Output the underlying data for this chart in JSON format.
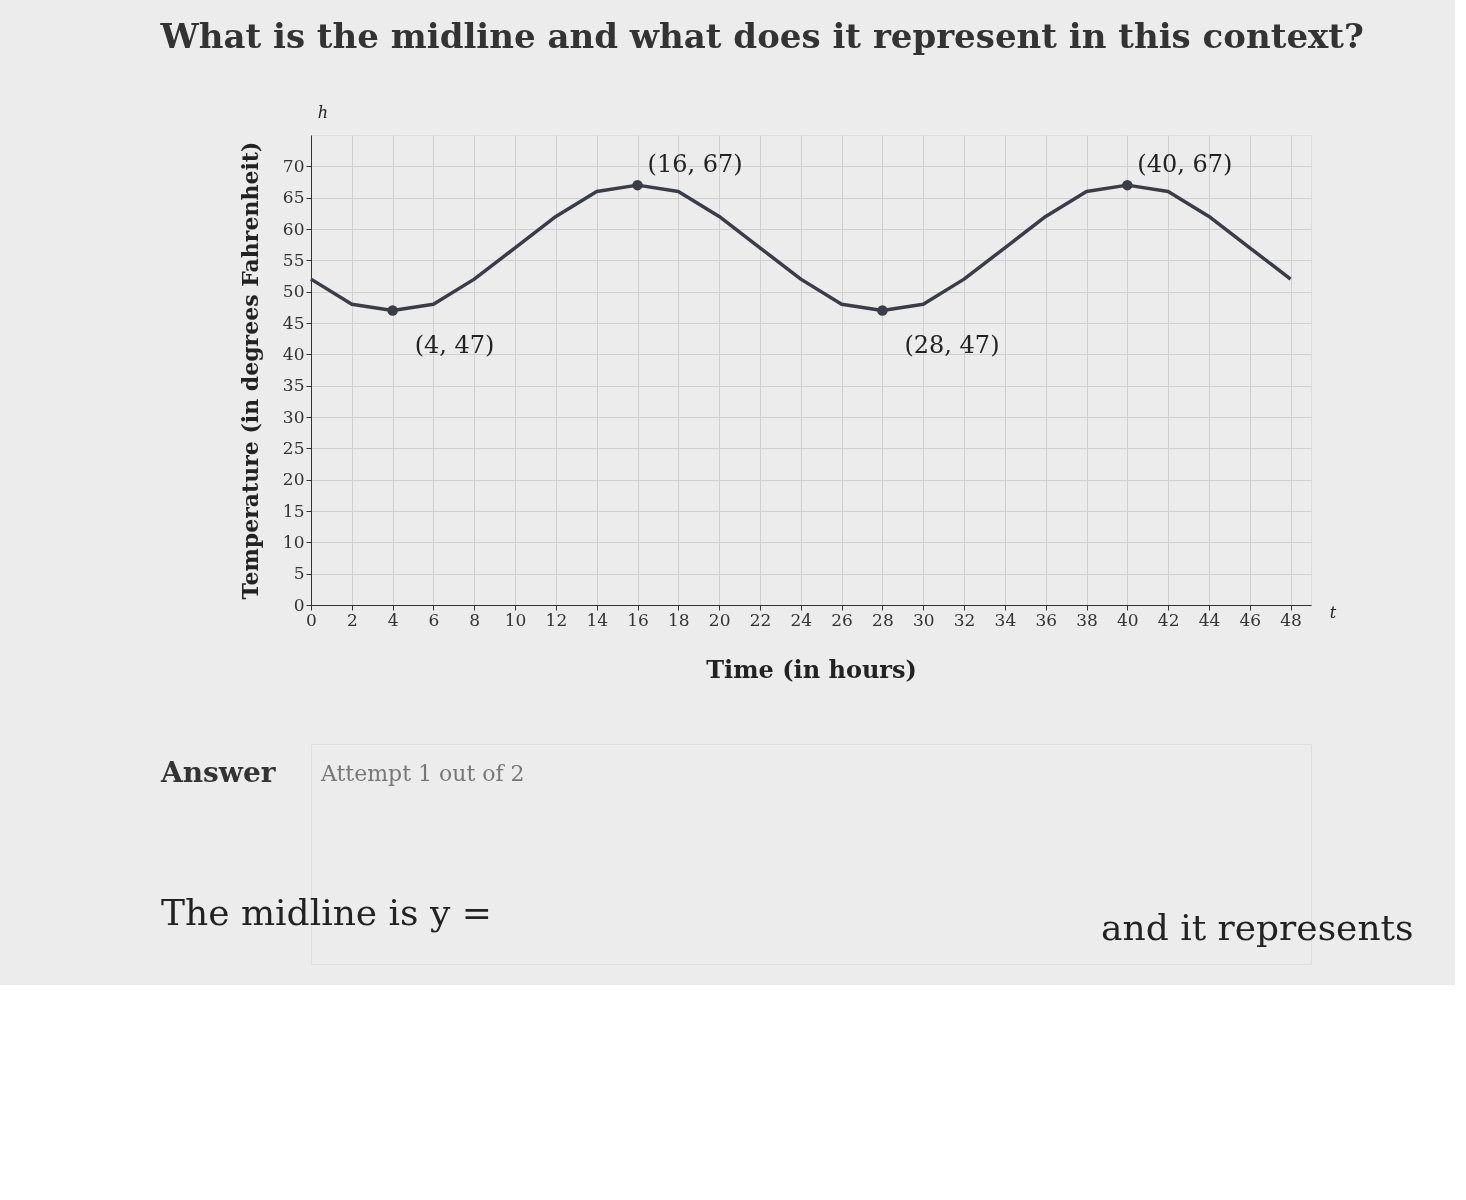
{
  "chart_data": {
    "type": "line",
    "title": "What is the midline and what does it represent in this context?",
    "xlabel": "Time (in hours)",
    "ylabel": "Temperature (in degrees Fahrenheit)",
    "series": [
      {
        "color": "#3a3d47",
        "marker": "none",
        "x": [
          0,
          2,
          4,
          6,
          8,
          10,
          12,
          14,
          16,
          18,
          20,
          22,
          24,
          26,
          28,
          30,
          32,
          34,
          36,
          38,
          40,
          42,
          44,
          46,
          48
        ],
        "values": [
          52,
          48,
          47,
          48,
          52,
          57,
          62,
          66,
          67,
          66,
          62,
          57,
          52,
          48,
          47,
          48,
          52,
          57,
          62,
          66,
          67,
          66,
          62,
          57,
          52
        ]
      },
      {
        "type": "scatter",
        "color": "#3a3d47",
        "marker": "circle",
        "x": [
          4,
          16,
          28,
          40
        ],
        "values": [
          47,
          67,
          47,
          67
        ]
      }
    ],
    "xlim": [
      0,
      49
    ],
    "xticks": [
      0,
      2,
      4,
      6,
      8,
      10,
      12,
      14,
      16,
      18,
      20,
      22,
      24,
      26,
      28,
      30,
      32,
      34,
      36,
      38,
      40,
      42,
      44,
      46,
      48
    ],
    "ylim": [
      0,
      75
    ],
    "yticks": [
      0,
      5,
      10,
      15,
      20,
      25,
      30,
      35,
      40,
      45,
      50,
      55,
      60,
      65,
      70
    ],
    "grid": true,
    "annotations": [
      {
        "text": "(4, 47)",
        "x": 4,
        "y": 47
      },
      {
        "text": "(16, 67)",
        "x": 16,
        "y": 67
      },
      {
        "text": "(28, 47)",
        "x": 28,
        "y": 47
      },
      {
        "text": "(40, 67)",
        "x": 40,
        "y": 67
      },
      "h",
      "t",
      "Answer",
      "Attempt 1 out of 2",
      "The midline is y =",
      "and it represents"
    ]
  }
}
